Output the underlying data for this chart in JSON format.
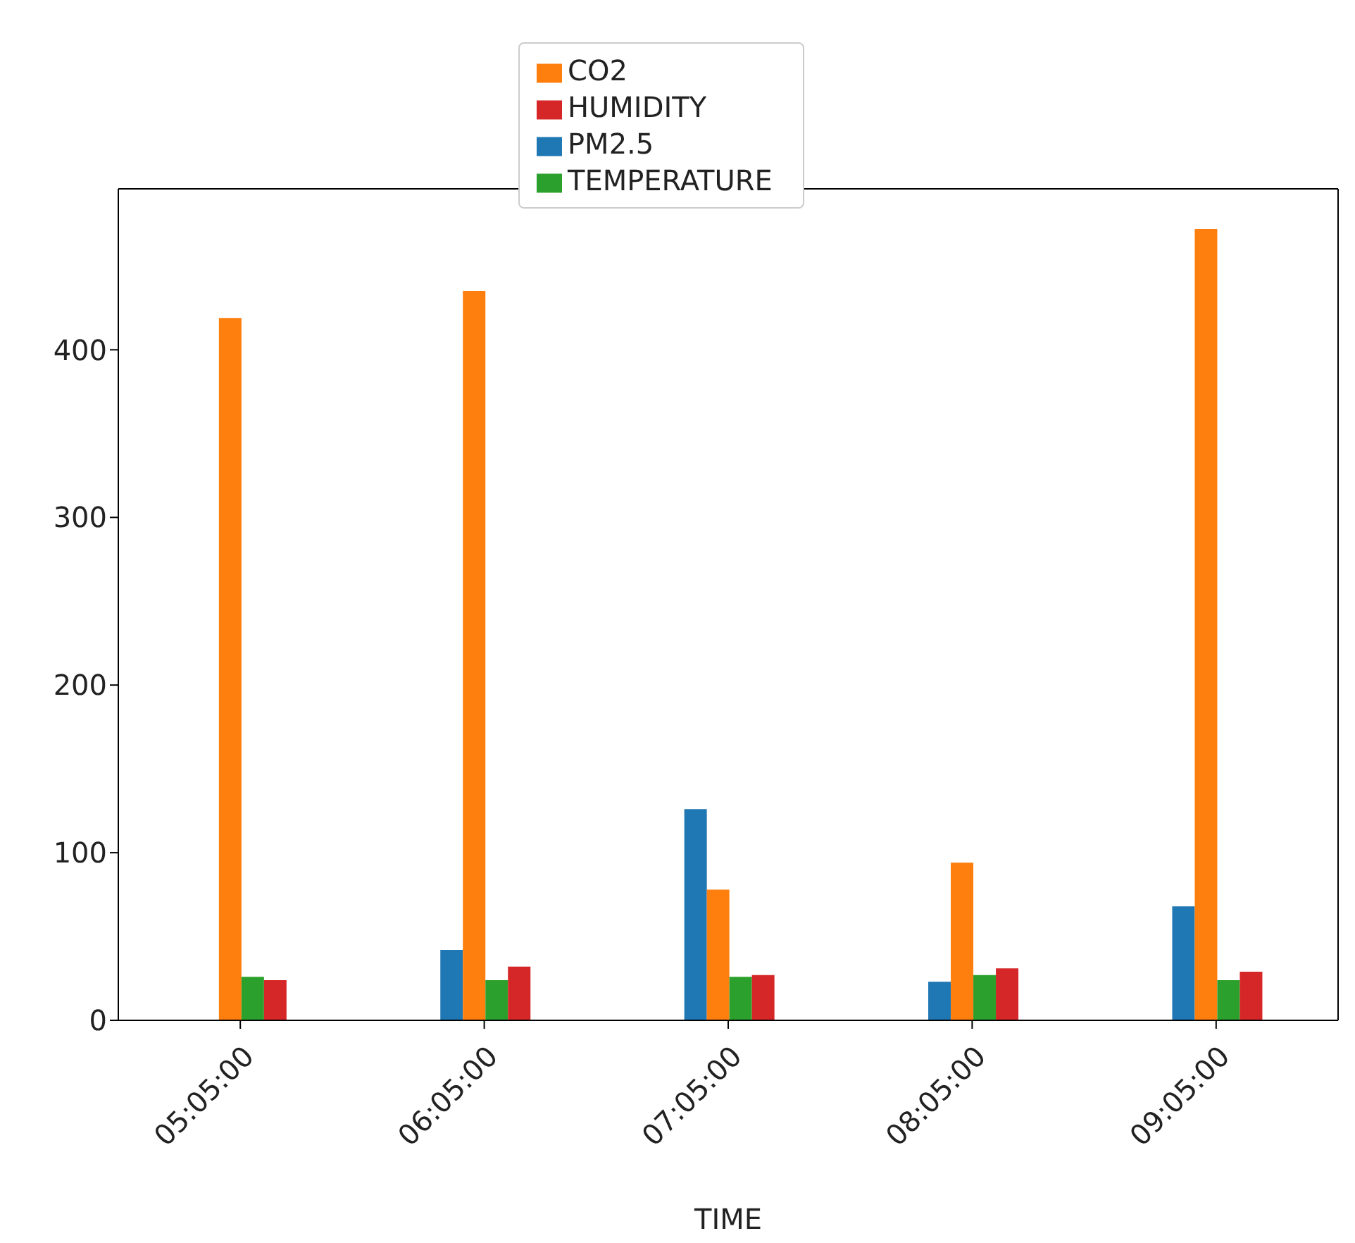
{
  "chart_data": {
    "type": "bar",
    "xlabel": "TIME",
    "categories": [
      "05:05:00",
      "06:05:00",
      "07:05:00",
      "08:05:00",
      "09:05:00"
    ],
    "series": [
      {
        "name": "PM2.5",
        "color": "#1f77b4",
        "values": [
          null,
          42,
          126,
          23,
          68
        ]
      },
      {
        "name": "CO2",
        "color": "#ff7f0e",
        "values": [
          419,
          435,
          78,
          94,
          472
        ]
      },
      {
        "name": "TEMPERATURE",
        "color": "#2ca02c",
        "values": [
          26,
          24,
          26,
          27,
          24
        ]
      },
      {
        "name": "HUMIDITY",
        "color": "#d62728",
        "values": [
          24,
          32,
          27,
          31,
          29
        ]
      }
    ],
    "ylim": [
      0,
      496
    ],
    "yticks": [
      0,
      100,
      200,
      300,
      400
    ],
    "grid": false,
    "legend": "top"
  }
}
